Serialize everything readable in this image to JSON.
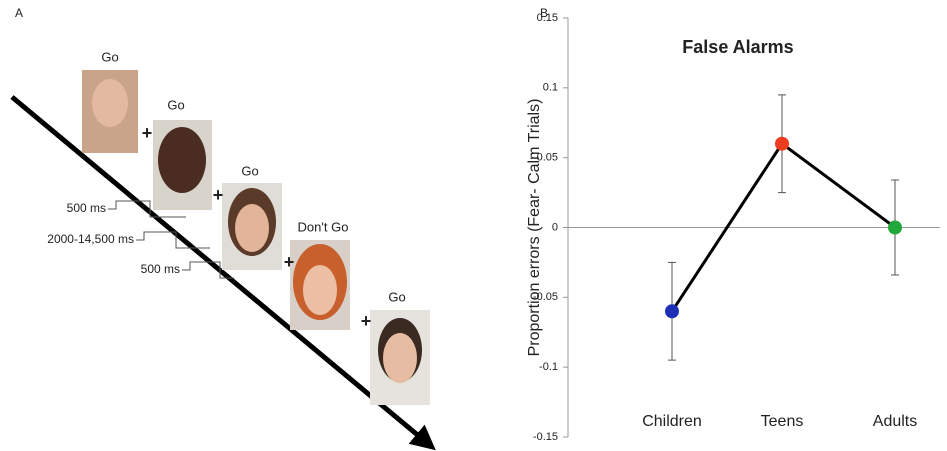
{
  "panel_a": {
    "label": "A",
    "cues": [
      "Go",
      "Go",
      "Go",
      "Don't Go",
      "Go"
    ],
    "plus": [
      "+",
      "+",
      "+",
      "+"
    ],
    "timings": [
      "500 ms",
      "2000-14,500 ms",
      "500 ms"
    ]
  },
  "chart_data": {
    "type": "line",
    "panel_label": "B",
    "title": "False Alarms",
    "y_label": "Proportion errors (Fear- Calm Trials)",
    "categories": [
      "Children",
      "Teens",
      "Adults"
    ],
    "series": [
      {
        "color": "#000000",
        "values": [
          -0.06,
          0.06,
          0.0
        ],
        "errors": [
          0.035,
          0.035,
          0.034
        ],
        "point_colors": [
          "#1f2fb5",
          "#f03c1e",
          "#22a83a"
        ]
      }
    ],
    "ylim": [
      -0.15,
      0.15
    ],
    "yticks": [
      -0.15,
      -0.1,
      -0.05,
      0,
      0.05,
      0.1,
      0.15
    ],
    "grid": false
  }
}
